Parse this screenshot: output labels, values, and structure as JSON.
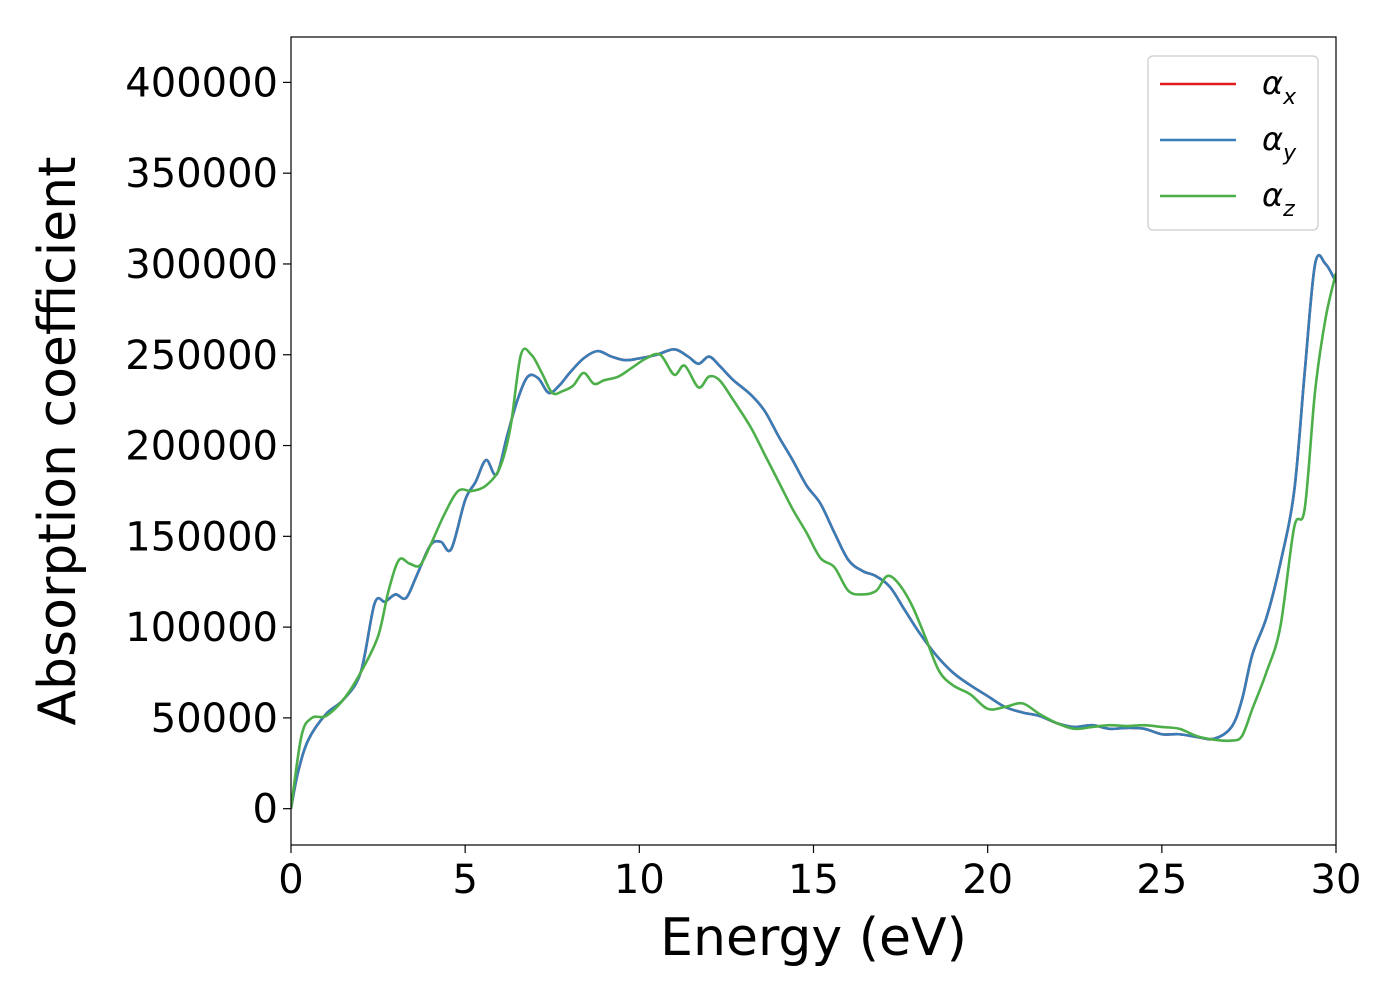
{
  "chart_data": {
    "type": "line",
    "xlabel": "Energy (eV)",
    "ylabel": "Absorption coefficient",
    "xlim": [
      0,
      30
    ],
    "ylim": [
      -20000,
      425000
    ],
    "xticks": [
      0,
      5,
      10,
      15,
      20,
      25,
      30
    ],
    "xtick_labels": [
      "0",
      "5",
      "10",
      "15",
      "20",
      "25",
      "30"
    ],
    "yticks": [
      0,
      50000,
      100000,
      150000,
      200000,
      250000,
      300000,
      350000,
      400000
    ],
    "ytick_labels": [
      "0",
      "50000",
      "100000",
      "150000",
      "200000",
      "250000",
      "300000",
      "350000",
      "400000"
    ],
    "grid": false,
    "legend_position": "top-right",
    "series": [
      {
        "name": "αx",
        "legend_base": "α",
        "legend_sub": "x",
        "color": "#e41a1c",
        "x": [
          0,
          0.2,
          0.5,
          1,
          1.5,
          2,
          2.4,
          2.7,
          3,
          3.3,
          3.6,
          4,
          4.3,
          4.6,
          5,
          5.3,
          5.6,
          5.9,
          6.2,
          6.5,
          6.8,
          7.1,
          7.4,
          7.7,
          8,
          8.4,
          8.8,
          9.2,
          9.6,
          10,
          10.5,
          11,
          11.4,
          11.7,
          12,
          12.3,
          12.7,
          13.2,
          13.6,
          14,
          14.4,
          14.8,
          15.2,
          15.6,
          16,
          16.4,
          16.8,
          17.2,
          17.6,
          18,
          18.5,
          19,
          19.5,
          20,
          20.5,
          21,
          21.5,
          22,
          22.5,
          23,
          23.5,
          24,
          24.5,
          25,
          25.5,
          26,
          26.5,
          27,
          27.3,
          27.6,
          28,
          28.4,
          28.8,
          29.1,
          29.4,
          29.7,
          30
        ],
        "y": [
          0,
          20000,
          38000,
          52000,
          60000,
          75000,
          113000,
          114000,
          118000,
          116000,
          128000,
          145000,
          147000,
          143000,
          170000,
          180000,
          192000,
          184000,
          205000,
          225000,
          238000,
          237000,
          229000,
          233000,
          240000,
          248000,
          252000,
          249000,
          247000,
          248000,
          250000,
          253000,
          249000,
          245000,
          249000,
          244000,
          236000,
          228000,
          219000,
          205000,
          192000,
          178000,
          168000,
          152000,
          137000,
          131000,
          128000,
          122000,
          110000,
          98000,
          85000,
          75000,
          68000,
          62000,
          56000,
          53000,
          51000,
          47000,
          45000,
          46000,
          44000,
          44500,
          44000,
          41000,
          41000,
          39500,
          38500,
          45000,
          60000,
          85000,
          105000,
          135000,
          175000,
          240000,
          300000,
          300000,
          290000
        ]
      },
      {
        "name": "αy",
        "legend_base": "α",
        "legend_sub": "y",
        "color": "#377eb8",
        "x": [
          0,
          0.2,
          0.5,
          1,
          1.5,
          2,
          2.4,
          2.7,
          3,
          3.3,
          3.6,
          4,
          4.3,
          4.6,
          5,
          5.3,
          5.6,
          5.9,
          6.2,
          6.5,
          6.8,
          7.1,
          7.4,
          7.7,
          8,
          8.4,
          8.8,
          9.2,
          9.6,
          10,
          10.5,
          11,
          11.4,
          11.7,
          12,
          12.3,
          12.7,
          13.2,
          13.6,
          14,
          14.4,
          14.8,
          15.2,
          15.6,
          16,
          16.4,
          16.8,
          17.2,
          17.6,
          18,
          18.5,
          19,
          19.5,
          20,
          20.5,
          21,
          21.5,
          22,
          22.5,
          23,
          23.5,
          24,
          24.5,
          25,
          25.5,
          26,
          26.5,
          27,
          27.3,
          27.6,
          28,
          28.4,
          28.8,
          29.1,
          29.4,
          29.7,
          30
        ],
        "y": [
          0,
          20000,
          38000,
          52000,
          60000,
          75000,
          113000,
          114000,
          118000,
          116000,
          128000,
          145000,
          147000,
          143000,
          170000,
          180000,
          192000,
          184000,
          205000,
          225000,
          238000,
          237000,
          229000,
          233000,
          240000,
          248000,
          252000,
          249000,
          247000,
          248000,
          250000,
          253000,
          249000,
          245000,
          249000,
          244000,
          236000,
          228000,
          219000,
          205000,
          192000,
          178000,
          168000,
          152000,
          137000,
          131000,
          128000,
          122000,
          110000,
          98000,
          85000,
          75000,
          68000,
          62000,
          56000,
          53000,
          51000,
          47000,
          45000,
          46000,
          44000,
          44500,
          44000,
          41000,
          41000,
          39500,
          38500,
          45000,
          60000,
          85000,
          105000,
          135000,
          175000,
          240000,
          300000,
          300000,
          290000
        ]
      },
      {
        "name": "αz",
        "legend_base": "α",
        "legend_sub": "z",
        "color": "#4daf4a",
        "x": [
          0,
          0.3,
          0.6,
          1,
          1.5,
          2,
          2.5,
          2.8,
          3.1,
          3.4,
          3.7,
          4,
          4.4,
          4.8,
          5.2,
          5.6,
          6,
          6.3,
          6.6,
          6.9,
          7.2,
          7.5,
          7.8,
          8.1,
          8.4,
          8.7,
          9,
          9.4,
          9.8,
          10.2,
          10.6,
          11,
          11.3,
          11.7,
          12,
          12.3,
          12.7,
          13.2,
          13.6,
          14,
          14.4,
          14.8,
          15.2,
          15.6,
          16,
          16.4,
          16.8,
          17.1,
          17.4,
          17.8,
          18.2,
          18.6,
          19,
          19.5,
          20,
          20.5,
          21,
          21.5,
          22,
          22.5,
          23,
          23.5,
          24,
          24.5,
          25,
          25.5,
          26,
          26.5,
          27,
          27.3,
          27.6,
          28,
          28.4,
          28.8,
          29.1,
          29.4,
          29.7,
          30
        ],
        "y": [
          0,
          40000,
          50000,
          51000,
          60000,
          75000,
          95000,
          120000,
          137000,
          135000,
          134000,
          145000,
          162000,
          175000,
          175000,
          178000,
          188000,
          210000,
          250000,
          250000,
          240000,
          229000,
          230000,
          233000,
          240000,
          234000,
          236000,
          238000,
          243000,
          248000,
          250000,
          239000,
          244000,
          232000,
          238000,
          236000,
          225000,
          210000,
          195000,
          180000,
          165000,
          152000,
          138000,
          133000,
          120000,
          118000,
          120000,
          128000,
          125000,
          113000,
          95000,
          76000,
          68000,
          63000,
          55000,
          56000,
          58000,
          52000,
          47000,
          44000,
          45000,
          46000,
          45500,
          46000,
          45000,
          44000,
          40000,
          38000,
          37500,
          40000,
          55000,
          75000,
          100000,
          155000,
          165000,
          230000,
          270000,
          295000
        ]
      }
    ]
  }
}
